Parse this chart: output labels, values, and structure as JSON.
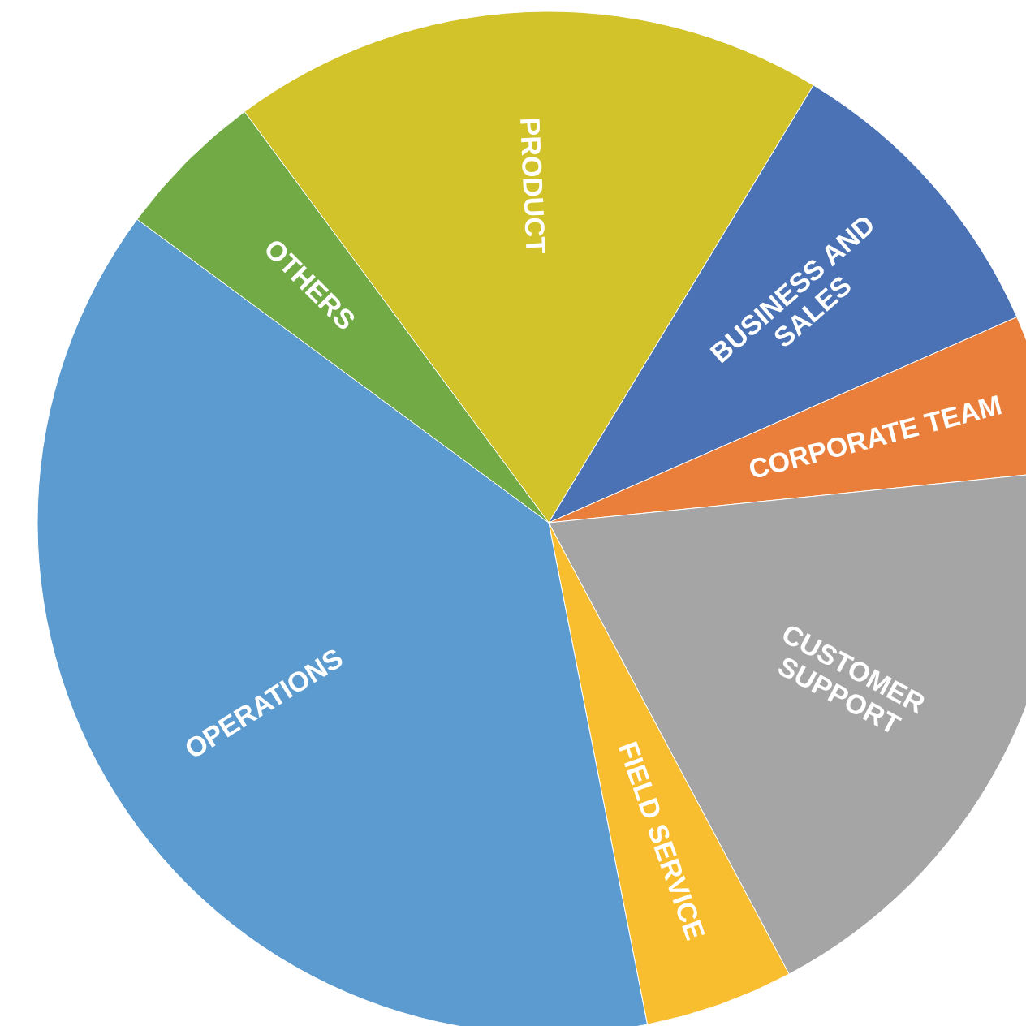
{
  "chart_data": {
    "type": "pie",
    "categories": [
      "PRODUCT",
      "BUSINESS AND SALES",
      "CORPORATE TEAM",
      "CUSTOMER SUPPORT",
      "FIELD SERVICE",
      "OPERATIONS",
      "OTHERS"
    ],
    "values": [
      18.8,
      9.75,
      5,
      18.8,
      4.7,
      38.2,
      4.75
    ],
    "colors": [
      "#d2c32a",
      "#4a72b5",
      "#e97f3a",
      "#a5a5a5",
      "#f8be30",
      "#5b9bcf",
      "#72aa45"
    ]
  }
}
